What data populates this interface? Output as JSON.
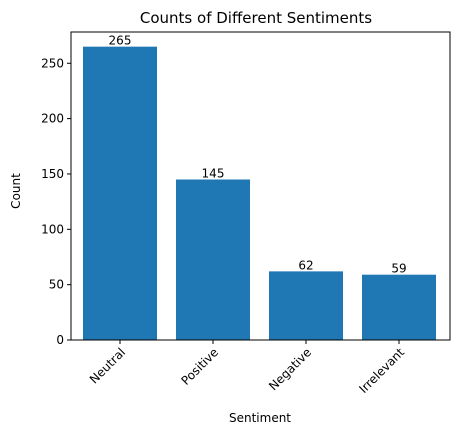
{
  "chart_data": {
    "type": "bar",
    "title": "Counts of Different Sentiments",
    "xlabel": "Sentiment",
    "ylabel": "Count",
    "categories": [
      "Neutral",
      "Positive",
      "Negative",
      "Irrelevant"
    ],
    "values": [
      265,
      145,
      62,
      59
    ],
    "data_labels": [
      "265",
      "145",
      "62",
      "59"
    ],
    "ylim": [
      0,
      278.25
    ],
    "yticks": [
      0,
      50,
      100,
      150,
      200,
      250
    ],
    "grid": false,
    "legend": "none",
    "colors": {
      "bar": "#1f77b4"
    }
  }
}
